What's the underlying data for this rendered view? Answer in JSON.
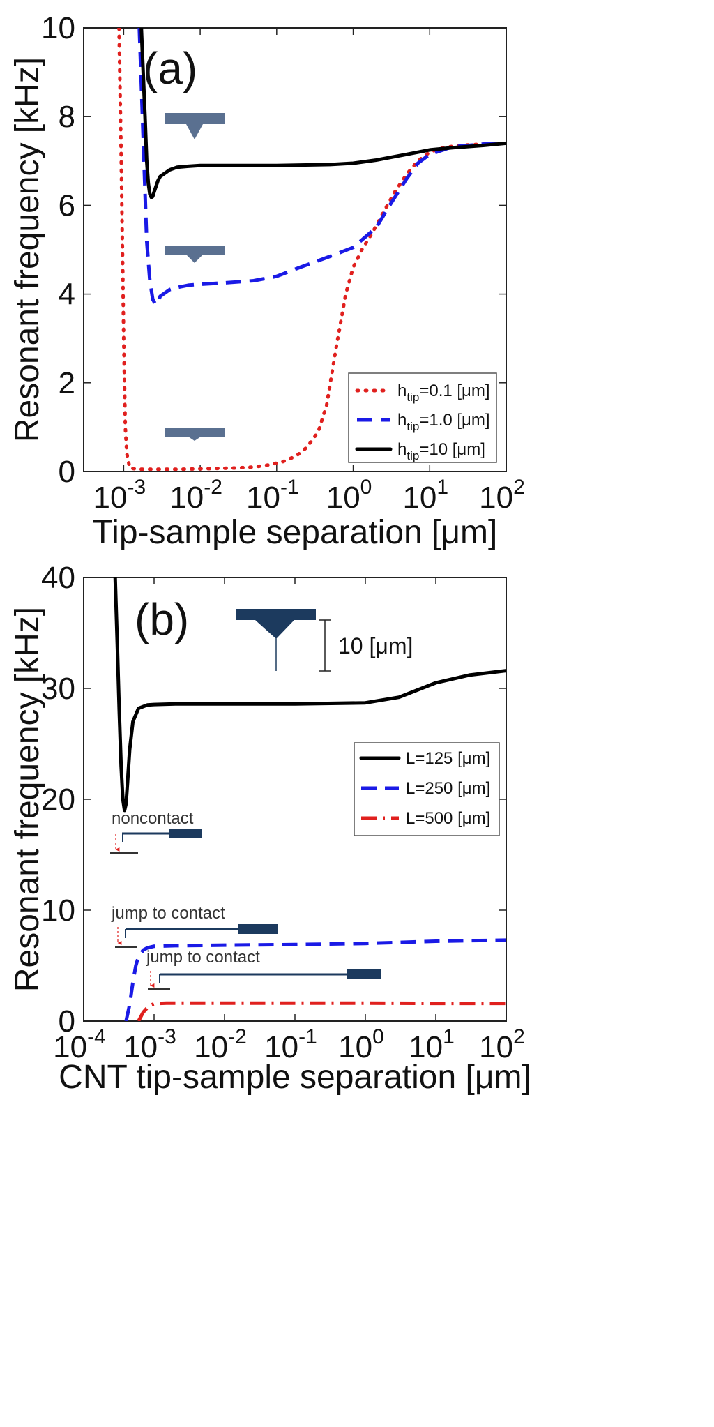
{
  "colors": {
    "red": "#e0201e",
    "blue": "#1a1ae6",
    "black": "#000000",
    "cantilever_light": "#5a7090",
    "cantilever_dark": "#1c3a5e"
  },
  "chart_data": [
    {
      "type": "line",
      "panel_label": "(a)",
      "xscale": "log",
      "xlabel": "Tip-sample separation [μm]",
      "ylabel": "Resonant frequency [kHz]",
      "xlim": [
        0.0003,
        100
      ],
      "ylim": [
        0,
        10
      ],
      "x_ticks": [
        {
          "base": "10",
          "exp": "-3",
          "value": 0.001
        },
        {
          "base": "10",
          "exp": "-2",
          "value": 0.01
        },
        {
          "base": "10",
          "exp": "-1",
          "value": 0.1
        },
        {
          "base": "10",
          "exp": "0",
          "value": 1
        },
        {
          "base": "10",
          "exp": "1",
          "value": 10
        },
        {
          "base": "10",
          "exp": "2",
          "value": 100
        }
      ],
      "y_ticks": [
        "0",
        "2",
        "4",
        "6",
        "8",
        "10"
      ],
      "legend_position": "bottom-right",
      "series": [
        {
          "name": "h",
          "sub": "tip",
          "suffix": "=0.1 [μm]",
          "style": "dotted",
          "color": "#e0201e",
          "x": [
            0.00087,
            0.00093,
            0.001,
            0.00105,
            0.0011,
            0.0012,
            0.0015,
            0.002,
            0.005,
            0.01,
            0.03,
            0.05,
            0.08,
            0.12,
            0.18,
            0.25,
            0.35,
            0.45,
            0.6,
            0.8,
            1.0,
            1.3,
            1.8,
            2.5,
            3.5,
            5,
            7,
            10,
            15,
            20,
            30,
            50,
            100
          ],
          "y": [
            10,
            7,
            3,
            1.0,
            0.4,
            0.08,
            0.05,
            0.05,
            0.05,
            0.06,
            0.08,
            0.1,
            0.15,
            0.22,
            0.35,
            0.55,
            0.9,
            1.5,
            2.8,
            4.0,
            4.6,
            5.0,
            5.4,
            5.85,
            6.3,
            6.7,
            7.0,
            7.2,
            7.3,
            7.33,
            7.36,
            7.38,
            7.4
          ]
        },
        {
          "name": "h",
          "sub": "tip",
          "suffix": "=1.0 [μm]",
          "style": "dashed",
          "color": "#1a1ae6",
          "x": [
            0.0016,
            0.0018,
            0.002,
            0.0022,
            0.0024,
            0.0026,
            0.0028,
            0.003,
            0.004,
            0.005,
            0.007,
            0.01,
            0.02,
            0.05,
            0.1,
            0.2,
            0.5,
            1.0,
            2.0,
            3.0,
            5.0,
            7.0,
            10,
            20,
            50,
            100
          ],
          "y": [
            10,
            7.5,
            5.2,
            4.3,
            3.88,
            3.77,
            3.8,
            3.95,
            4.1,
            4.15,
            4.2,
            4.22,
            4.25,
            4.3,
            4.4,
            4.6,
            4.85,
            5.05,
            5.5,
            6.0,
            6.6,
            6.95,
            7.15,
            7.32,
            7.38,
            7.4
          ]
        },
        {
          "name": "h",
          "sub": "tip",
          "suffix": "=10 [μm]",
          "style": "solid",
          "color": "#000000",
          "x": [
            0.0017,
            0.0019,
            0.002,
            0.0021,
            0.0022,
            0.0023,
            0.0024,
            0.0025,
            0.0028,
            0.003,
            0.004,
            0.005,
            0.007,
            0.01,
            0.05,
            0.1,
            0.5,
            1.0,
            2.0,
            5.0,
            10,
            20,
            50,
            100
          ],
          "y": [
            10,
            8.0,
            7.0,
            6.5,
            6.25,
            6.18,
            6.2,
            6.3,
            6.55,
            6.65,
            6.8,
            6.86,
            6.88,
            6.9,
            6.9,
            6.9,
            6.92,
            6.95,
            7.02,
            7.15,
            7.25,
            7.3,
            7.35,
            7.4
          ]
        }
      ]
    },
    {
      "type": "line",
      "panel_label": "(b)",
      "xscale": "log",
      "xlabel": "CNT tip-sample separation [μm]",
      "ylabel": "Resonant frequency [kHz]",
      "xlim": [
        0.0001,
        100
      ],
      "ylim": [
        0,
        40
      ],
      "x_ticks": [
        {
          "base": "10",
          "exp": "-4",
          "value": 0.0001
        },
        {
          "base": "10",
          "exp": "-3",
          "value": 0.001
        },
        {
          "base": "10",
          "exp": "-2",
          "value": 0.01
        },
        {
          "base": "10",
          "exp": "-1",
          "value": 0.1
        },
        {
          "base": "10",
          "exp": "0",
          "value": 1
        },
        {
          "base": "10",
          "exp": "1",
          "value": 10
        },
        {
          "base": "10",
          "exp": "2",
          "value": 100
        }
      ],
      "y_ticks": [
        "0",
        "10",
        "20",
        "30",
        "40"
      ],
      "legend_position": "right",
      "scale_bar_label": "10 [μm]",
      "annotations": [
        "noncontact",
        "jump to contact",
        "jump to contact"
      ],
      "series": [
        {
          "name": "L=125 [μm]",
          "style": "solid",
          "color": "#000000",
          "x": [
            0.00028,
            0.0003,
            0.00032,
            0.00034,
            0.00036,
            0.00038,
            0.0004,
            0.00042,
            0.00045,
            0.0005,
            0.0006,
            0.0008,
            0.001,
            0.002,
            0.005,
            0.01,
            0.1,
            1,
            3,
            10,
            30,
            100
          ],
          "y": [
            40,
            34,
            28,
            23,
            20,
            19.0,
            19.6,
            21.5,
            24.5,
            27.0,
            28.2,
            28.5,
            28.55,
            28.6,
            28.6,
            28.6,
            28.6,
            28.7,
            29.2,
            30.5,
            31.2,
            31.6
          ]
        },
        {
          "name": "L=250 [μm]",
          "style": "dashed",
          "color": "#1a1ae6",
          "x": [
            0.0004,
            0.00045,
            0.0005,
            0.00055,
            0.0006,
            0.0007,
            0.0008,
            0.001,
            0.002,
            0.01,
            0.1,
            1,
            10,
            100
          ],
          "y": [
            0,
            1.5,
            3.5,
            5.0,
            5.8,
            6.4,
            6.6,
            6.75,
            6.8,
            6.85,
            6.9,
            7.0,
            7.2,
            7.3
          ]
        },
        {
          "name": "L=500 [μm]",
          "style": "dashdot",
          "color": "#e0201e",
          "x": [
            0.0006,
            0.00065,
            0.0007,
            0.0008,
            0.0009,
            0.001,
            0.0012,
            0.0015,
            0.01,
            0.1,
            1,
            10,
            100
          ],
          "y": [
            0,
            0.4,
            0.8,
            1.2,
            1.45,
            1.55,
            1.6,
            1.62,
            1.62,
            1.62,
            1.62,
            1.6,
            1.6
          ]
        }
      ]
    }
  ]
}
